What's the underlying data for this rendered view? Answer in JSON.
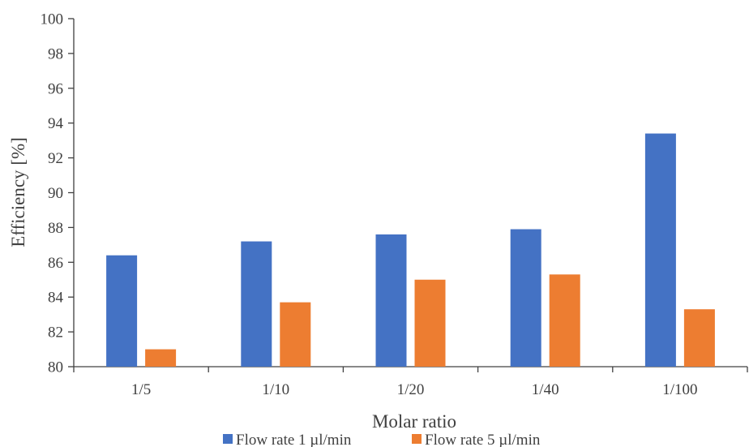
{
  "chart_data": {
    "type": "bar",
    "categories": [
      "1/5",
      "1/10",
      "1/20",
      "1/40",
      "1/100"
    ],
    "series": [
      {
        "name": "Flow rate 1 µl/min",
        "color": "#4472C4",
        "values": [
          86.4,
          87.2,
          87.6,
          87.9,
          93.4
        ]
      },
      {
        "name": "Flow rate 5 µl/min",
        "color": "#ED7D31",
        "values": [
          81.0,
          83.7,
          85.0,
          85.3,
          83.3
        ]
      }
    ],
    "xlabel": "Molar ratio",
    "ylabel": "Efficiency [%]",
    "ylim": [
      80,
      100
    ],
    "yticks": [
      80,
      82,
      84,
      86,
      88,
      90,
      92,
      94,
      96,
      98,
      100
    ],
    "grid": false,
    "legend": "bottom"
  }
}
